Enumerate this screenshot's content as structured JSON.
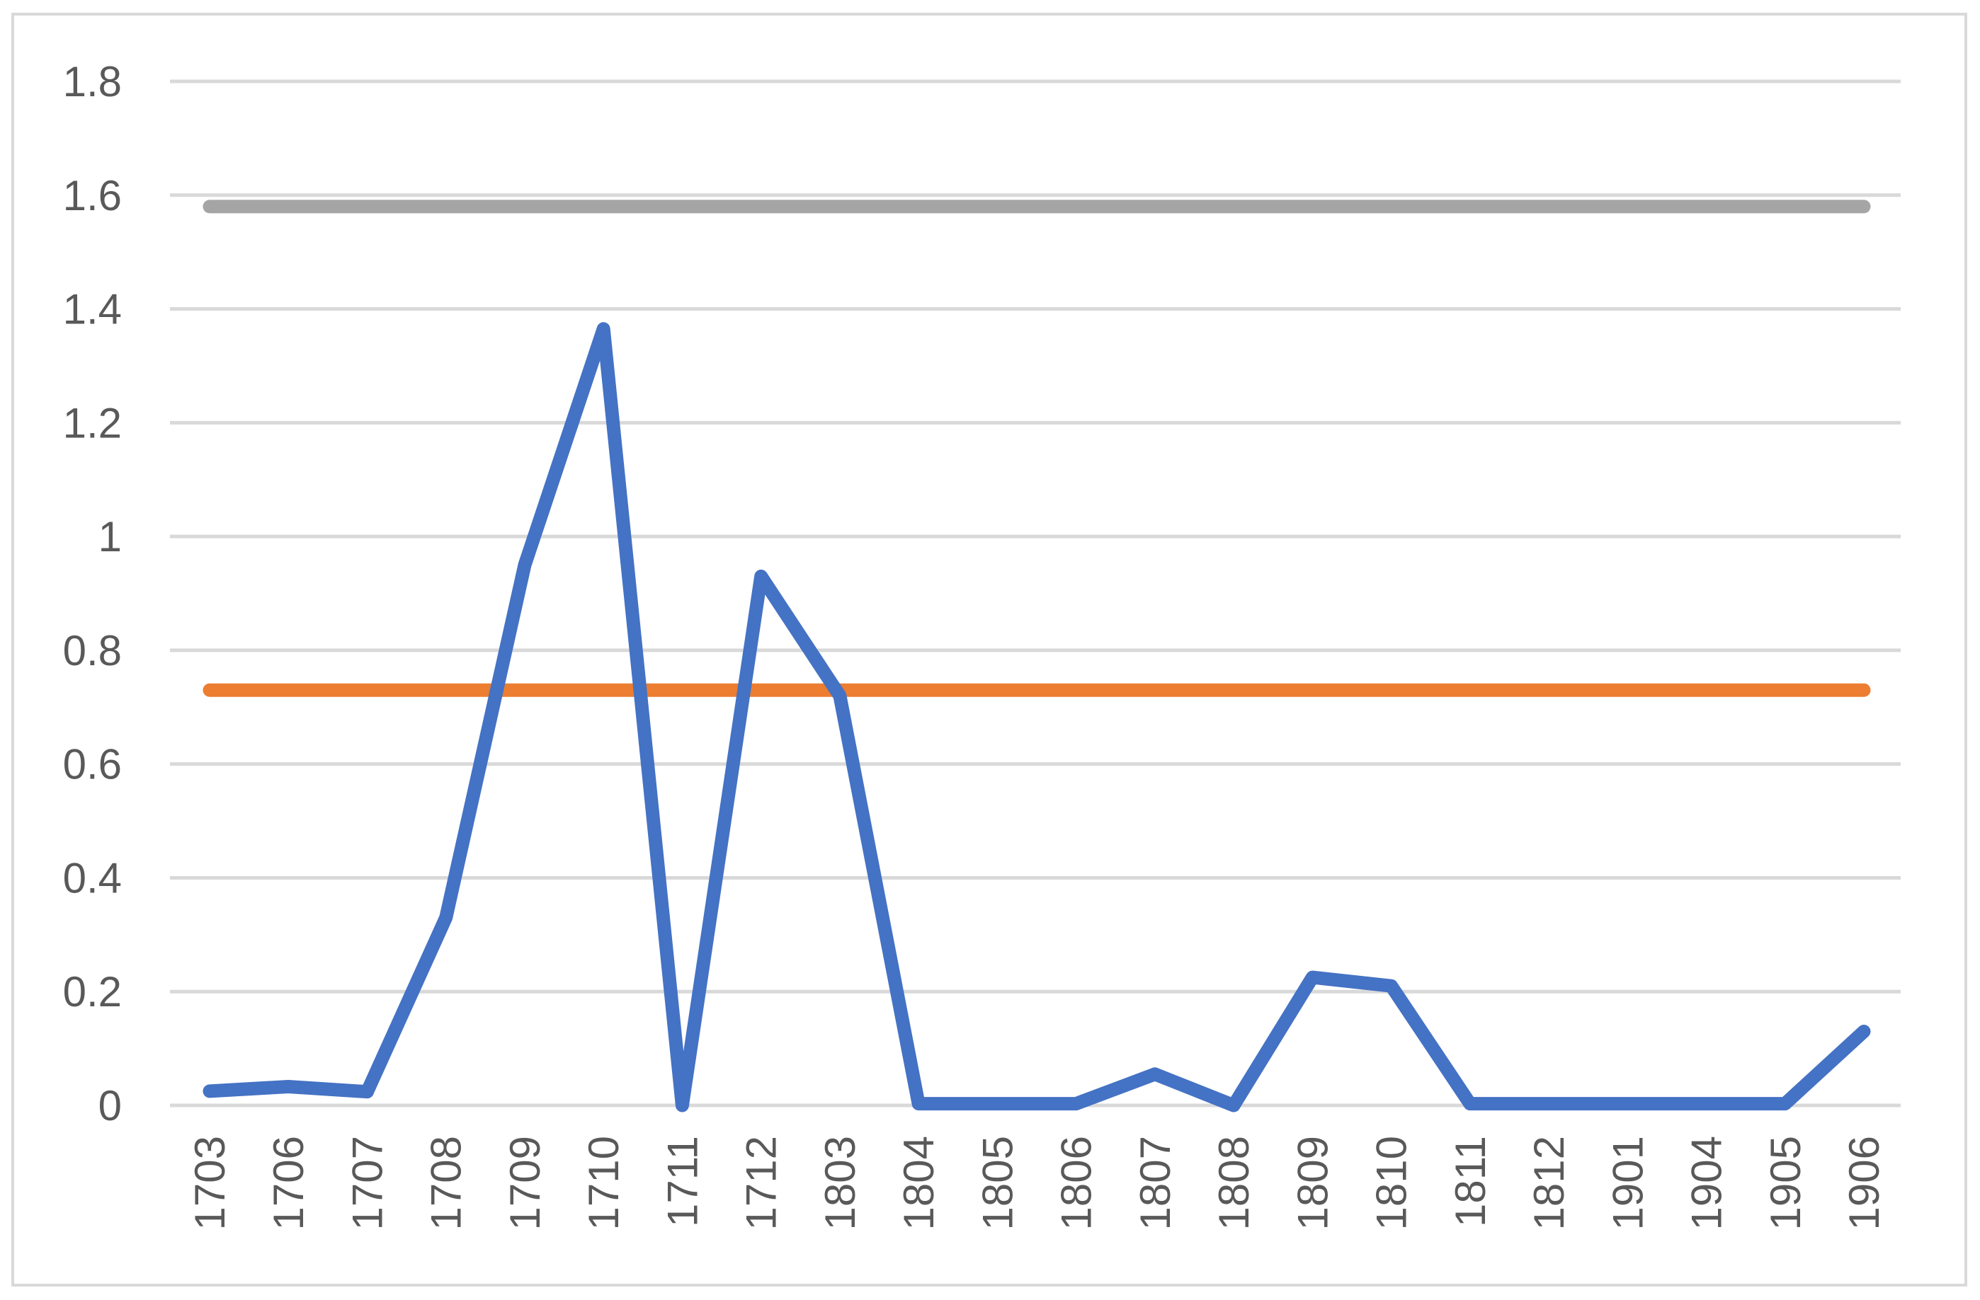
{
  "chart_data": {
    "type": "line",
    "title": "",
    "xlabel": "",
    "ylabel": "",
    "ylim": [
      0,
      1.8
    ],
    "yticks": [
      "0",
      "0.2",
      "0.4",
      "0.6",
      "0.8",
      "1",
      "1.2",
      "1.4",
      "1.6",
      "1.8"
    ],
    "grid": true,
    "legend": "none",
    "categories": [
      "1703",
      "1706",
      "1707",
      "1708",
      "1709",
      "1710",
      "1711",
      "1712",
      "1803",
      "1804",
      "1805",
      "1806",
      "1807",
      "1808",
      "1809",
      "1810",
      "1811",
      "1812",
      "1901",
      "1904",
      "1905",
      "1906"
    ],
    "series": [
      {
        "color": "#4472c4",
        "values": [
          0.025,
          0.033,
          0.024,
          0.33,
          0.95,
          1.365,
          0.0,
          0.93,
          0.72,
          0.003,
          0.003,
          0.003,
          0.055,
          0.0,
          0.225,
          0.21,
          0.003,
          0.003,
          0.003,
          0.003,
          0.003,
          0.13
        ]
      },
      {
        "color": "#ed7d31",
        "values": [
          0.73,
          0.73,
          0.73,
          0.73,
          0.73,
          0.73,
          0.73,
          0.73,
          0.73,
          0.73,
          0.73,
          0.73,
          0.73,
          0.73,
          0.73,
          0.73,
          0.73,
          0.73,
          0.73,
          0.73,
          0.73,
          0.73
        ]
      },
      {
        "color": "#a5a5a5",
        "values": [
          1.58,
          1.58,
          1.58,
          1.58,
          1.58,
          1.58,
          1.58,
          1.58,
          1.58,
          1.58,
          1.58,
          1.58,
          1.58,
          1.58,
          1.58,
          1.58,
          1.58,
          1.58,
          1.58,
          1.58,
          1.58,
          1.58
        ]
      }
    ]
  }
}
